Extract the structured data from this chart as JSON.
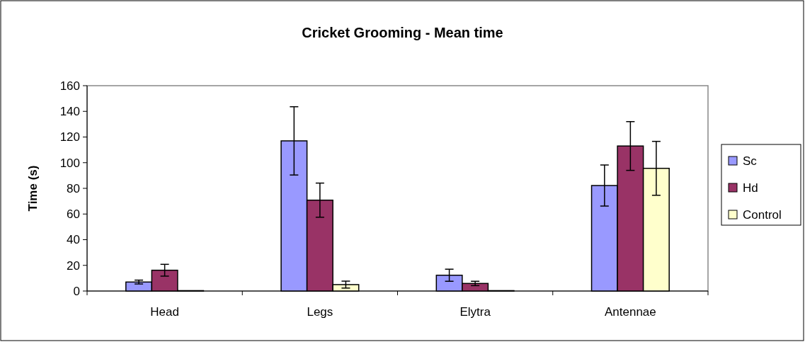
{
  "chart_data": {
    "type": "bar",
    "title": "Cricket Grooming - Mean time",
    "ylabel": "Time (s)",
    "categories": [
      "Head",
      "Legs",
      "Elytra",
      "Antennae"
    ],
    "series": [
      {
        "name": "Sc",
        "color": "#9999ff",
        "values": [
          7.0,
          117,
          12.3,
          82.2
        ],
        "errors": [
          1.5,
          26.6,
          4.7,
          16
        ]
      },
      {
        "name": "Hd",
        "color": "#993366",
        "values": [
          16.2,
          70.8,
          5.9,
          113
        ],
        "errors": [
          4.6,
          13.3,
          1.7,
          19
        ]
      },
      {
        "name": "Control",
        "color": "#ffffcc",
        "values": [
          0.3,
          5.0,
          0.3,
          95.6
        ],
        "errors": [
          null,
          2.7,
          null,
          21
        ]
      }
    ],
    "ylim": [
      0,
      160
    ],
    "yticks": [
      0,
      20,
      40,
      60,
      80,
      100,
      120,
      140,
      160
    ],
    "legend": "right"
  }
}
